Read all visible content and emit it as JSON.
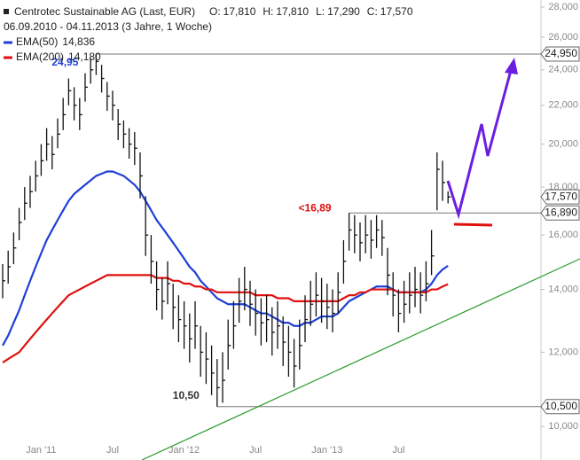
{
  "chart_data": {
    "type": "ohlc",
    "title": "Centrotec Sustainable AG (Last, EUR)",
    "subtitle": "06.09.2010 - 04.11.2013 (3 Jahre, 1 Woche)",
    "quote": [
      {
        "label": "O:",
        "value": "17,810"
      },
      {
        "label": "H:",
        "value": "17,810"
      },
      {
        "label": "L:",
        "value": "17,290"
      },
      {
        "label": "C:",
        "value": "17,570"
      }
    ],
    "log_scale": true,
    "ylim": [
      9.21,
      28.49
    ],
    "yticks": [
      {
        "value": 10,
        "label": "10,000"
      },
      {
        "value": 12,
        "label": "12,000"
      },
      {
        "value": 14,
        "label": "14,000"
      },
      {
        "value": 16,
        "label": "16,000"
      },
      {
        "value": 18,
        "label": "18,000"
      },
      {
        "value": 20,
        "label": "20,000"
      },
      {
        "value": 22,
        "label": "22,000"
      },
      {
        "value": 24,
        "label": "24,000"
      },
      {
        "value": 26,
        "label": "26,000"
      },
      {
        "value": 28,
        "label": "28,000"
      }
    ],
    "categories": [
      null,
      null,
      null,
      null,
      null,
      null,
      null,
      "Jan '11",
      null,
      null,
      null,
      null,
      null,
      null,
      null,
      null,
      null,
      null,
      null,
      null,
      "Jul",
      null,
      null,
      null,
      null,
      null,
      null,
      null,
      null,
      null,
      null,
      null,
      null,
      "Jan '12",
      null,
      null,
      null,
      null,
      null,
      null,
      null,
      null,
      null,
      null,
      null,
      null,
      "Jul",
      null,
      null,
      null,
      null,
      null,
      null,
      null,
      null,
      null,
      null,
      null,
      null,
      "Jan '13",
      null,
      null,
      null,
      null,
      null,
      null,
      null,
      null,
      null,
      null,
      null,
      null,
      "Jul",
      null,
      null,
      null,
      null,
      null,
      null,
      null,
      null,
      null
    ],
    "high": [
      14.9,
      15.4,
      16.1,
      17.1,
      18.0,
      18.5,
      19.2,
      20.0,
      20.8,
      20.4,
      21.3,
      22.4,
      23.5,
      23.0,
      22.4,
      23.8,
      24.7,
      24.95,
      24.3,
      23.3,
      22.8,
      21.8,
      21.2,
      20.8,
      20.6,
      19.6,
      17.6,
      16.0,
      15.0,
      14.4,
      15.0,
      14.2,
      13.8,
      13.6,
      13.2,
      13.6,
      12.8,
      12.6,
      12.2,
      11.8,
      12.0,
      13.0,
      13.6,
      14.4,
      14.8,
      14.3,
      14.0,
      13.7,
      13.8,
      13.4,
      13.6,
      13.1,
      12.8,
      12.4,
      13.0,
      13.8,
      14.3,
      14.6,
      14.4,
      14.2,
      14.0,
      14.6,
      15.8,
      16.89,
      16.8,
      16.5,
      16.8,
      16.6,
      16.8,
      16.6,
      15.5,
      14.6,
      14.0,
      14.3,
      14.6,
      14.8,
      14.6,
      15.0,
      16.2,
      19.6,
      19.2,
      17.81
    ],
    "low": [
      13.7,
      14.2,
      14.9,
      15.8,
      16.6,
      17.1,
      17.8,
      18.5,
      19.2,
      18.8,
      19.8,
      20.7,
      22.0,
      21.2,
      20.7,
      22.2,
      23.2,
      23.7,
      22.7,
      21.7,
      21.2,
      20.2,
      19.8,
      19.3,
      19.0,
      17.5,
      15.2,
      14.2,
      13.3,
      13.0,
      13.5,
      12.7,
      12.3,
      12.1,
      11.7,
      12.1,
      11.3,
      11.1,
      10.8,
      10.5,
      10.6,
      11.5,
      12.1,
      12.9,
      13.3,
      12.8,
      12.5,
      12.2,
      12.3,
      11.9,
      12.1,
      11.6,
      11.3,
      11.0,
      11.5,
      12.3,
      12.8,
      13.1,
      12.9,
      12.7,
      12.6,
      13.2,
      14.2,
      15.4,
      15.3,
      15.0,
      15.3,
      15.1,
      15.5,
      15.2,
      13.8,
      13.1,
      12.6,
      12.9,
      13.2,
      13.4,
      13.2,
      13.6,
      14.5,
      17.0,
      17.4,
      17.29
    ],
    "close": [
      14.3,
      14.8,
      15.5,
      16.5,
      17.3,
      17.8,
      18.5,
      19.2,
      20.0,
      19.5,
      20.5,
      21.5,
      22.8,
      22.0,
      21.5,
      23.0,
      24.0,
      24.5,
      23.5,
      22.5,
      22.0,
      21.0,
      20.5,
      20.0,
      19.8,
      18.5,
      16.0,
      15.0,
      14.0,
      13.6,
      14.2,
      13.4,
      13.0,
      12.8,
      12.4,
      12.8,
      12.0,
      11.8,
      11.4,
      11.0,
      11.2,
      12.2,
      12.8,
      13.6,
      14.0,
      13.5,
      13.2,
      12.9,
      13.0,
      12.6,
      12.8,
      12.3,
      12.0,
      11.6,
      12.2,
      13.0,
      13.5,
      13.8,
      13.6,
      13.4,
      13.2,
      13.9,
      15.0,
      16.2,
      16.0,
      15.7,
      16.0,
      15.8,
      16.2,
      15.9,
      14.5,
      13.8,
      13.2,
      13.5,
      13.8,
      14.0,
      13.8,
      14.2,
      15.2,
      18.8,
      18.2,
      17.57
    ],
    "color": "#111111",
    "last_close_label": "17,570",
    "series": [
      {
        "name": "EMA(50)",
        "color": "#1f3fd8",
        "last_value_label": "14,836",
        "values": [
          12.2,
          12.5,
          12.9,
          13.3,
          13.8,
          14.3,
          14.8,
          15.3,
          15.8,
          16.2,
          16.6,
          17.0,
          17.4,
          17.7,
          17.9,
          18.1,
          18.3,
          18.5,
          18.6,
          18.7,
          18.7,
          18.6,
          18.5,
          18.3,
          18.1,
          17.8,
          17.4,
          17.0,
          16.6,
          16.3,
          16.0,
          15.7,
          15.4,
          15.1,
          14.8,
          14.6,
          14.3,
          14.1,
          13.9,
          13.7,
          13.6,
          13.5,
          13.5,
          13.5,
          13.5,
          13.4,
          13.3,
          13.2,
          13.2,
          13.1,
          13.0,
          12.9,
          12.9,
          12.8,
          12.8,
          12.9,
          12.9,
          13.0,
          13.1,
          13.1,
          13.1,
          13.2,
          13.4,
          13.6,
          13.7,
          13.8,
          13.9,
          14.0,
          14.1,
          14.1,
          14.1,
          14.0,
          13.9,
          13.9,
          13.9,
          13.9,
          13.9,
          14.0,
          14.2,
          14.5,
          14.7,
          14.836
        ]
      },
      {
        "name": "EMA(200)",
        "color": "#e01010",
        "last_value_label": "14,180",
        "values": [
          11.7,
          11.8,
          11.9,
          12.0,
          12.2,
          12.4,
          12.6,
          12.8,
          13.0,
          13.2,
          13.4,
          13.6,
          13.8,
          13.9,
          14.0,
          14.1,
          14.2,
          14.3,
          14.4,
          14.5,
          14.5,
          14.5,
          14.5,
          14.5,
          14.5,
          14.5,
          14.5,
          14.5,
          14.4,
          14.4,
          14.4,
          14.3,
          14.3,
          14.2,
          14.2,
          14.1,
          14.1,
          14.0,
          14.0,
          13.9,
          13.9,
          13.9,
          13.9,
          13.9,
          13.9,
          13.9,
          13.8,
          13.8,
          13.8,
          13.8,
          13.7,
          13.7,
          13.7,
          13.6,
          13.6,
          13.6,
          13.6,
          13.6,
          13.6,
          13.6,
          13.6,
          13.6,
          13.7,
          13.8,
          13.8,
          13.9,
          13.9,
          14.0,
          14.0,
          14.0,
          14.0,
          14.0,
          13.9,
          13.9,
          13.9,
          13.9,
          13.9,
          13.9,
          14.0,
          14.0,
          14.1,
          14.18
        ]
      }
    ],
    "annotations": [
      {
        "value": 24.95,
        "label": "24,95",
        "box_label": "24,950",
        "color": "#1f3fd8",
        "start": 17
      },
      {
        "value": 16.89,
        "label": "<16,89",
        "box_label": "16,890",
        "color": "#e01010",
        "start": 63
      },
      {
        "value": 10.5,
        "label": "10,50",
        "box_label": "10,500",
        "color": "#333333",
        "start": 39
      }
    ]
  }
}
